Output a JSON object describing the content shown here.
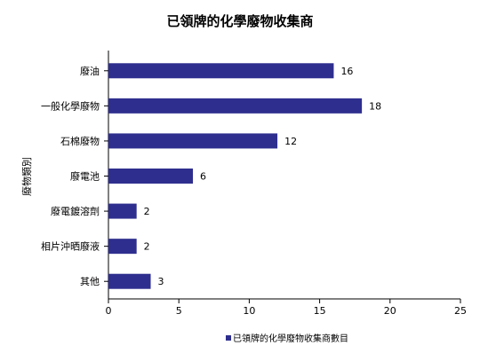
{
  "chart_data": {
    "type": "bar",
    "orientation": "horizontal",
    "title": "已領牌的化學廢物收集商",
    "xlabel": "",
    "ylabel": "廢物類別",
    "categories": [
      "廢油",
      "一般化學廢物",
      "石棉廢物",
      "廢電池",
      "廢電鍍溶劑",
      "相片沖晒廢液",
      "其他"
    ],
    "series": [
      {
        "name": "已領牌的化學廢物收集商數目",
        "values": [
          16,
          18,
          12,
          6,
          2,
          2,
          3
        ],
        "color": "#2e2e8f"
      }
    ],
    "xlim": [
      0,
      25
    ],
    "xticks": [
      0,
      5,
      10,
      15,
      20,
      25
    ],
    "data_labels": true,
    "grid": false,
    "legend_position": "bottom-right"
  }
}
